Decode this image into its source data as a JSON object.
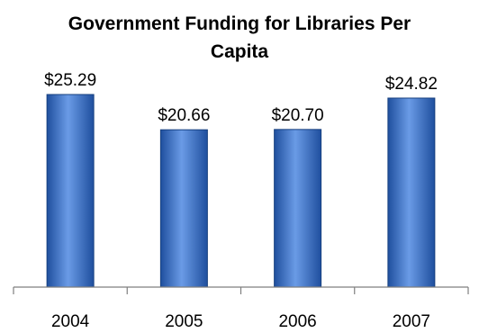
{
  "chart_data": {
    "type": "bar",
    "title_lines": [
      "Government Funding for Libraries Per",
      "Capita"
    ],
    "categories": [
      "2004",
      "2005",
      "2006",
      "2007"
    ],
    "values": [
      25.29,
      20.66,
      20.7,
      24.82
    ],
    "data_labels": [
      "$25.29",
      "$20.66",
      "$20.70",
      "$24.82"
    ],
    "xlabel": "",
    "ylabel": "",
    "ylim": [
      0,
      25.29
    ],
    "grid": false,
    "legend": "none",
    "colors": {
      "bar_light": "#6A9BE6",
      "bar_dark": "#1F4F9E",
      "bar_edge": "#17407F",
      "axis": "#7F7F7F"
    }
  }
}
